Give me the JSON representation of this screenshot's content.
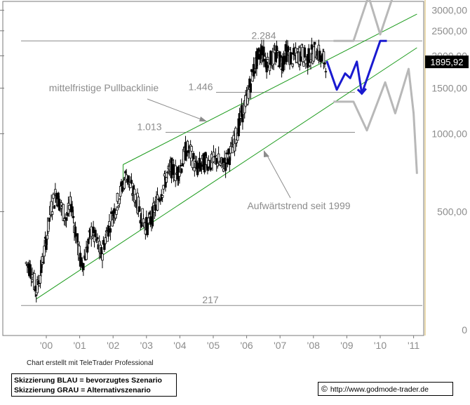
{
  "chart_data": {
    "type": "candlestick",
    "y_scale": "log",
    "x_axis": {
      "tick_labels": [
        "'00",
        "'01",
        "'02",
        "'03",
        "'04",
        "'05",
        "'06",
        "'07",
        "'08",
        "'09",
        "'10",
        "'11"
      ]
    },
    "y_axis": {
      "tick_labels": [
        "3000,00",
        "2500,00",
        "2000,00",
        "1500,00",
        "1000,00",
        "500,00",
        "0"
      ],
      "tick_values": [
        3000,
        2500,
        2000,
        1500,
        1000,
        500
      ],
      "position": "right"
    },
    "current_price": {
      "label": "1895,92",
      "value": 1895.92
    },
    "horizontal_levels": [
      {
        "label": "2.284",
        "value": 2284
      },
      {
        "label": "1.446",
        "value": 1446
      },
      {
        "label": "1.013",
        "value": 1013
      },
      {
        "label": "217",
        "value": 217
      }
    ],
    "annotations": [
      {
        "text": "mittelfristige Pullbacklinie"
      },
      {
        "text": "Aufwärtstrend seit 1999"
      }
    ],
    "trendlines": [
      {
        "name": "mittelfristige Pullbacklinie",
        "from": {
          "year": 2002.3,
          "value": 760
        },
        "to": {
          "year": 2011.1,
          "value": 2900
        }
      },
      {
        "name": "Aufwärtstrend seit 1999",
        "from": {
          "year": 1999.7,
          "value": 230
        },
        "to": {
          "year": 2011.1,
          "value": 2150
        }
      }
    ],
    "scenario_blue": [
      {
        "year": 2008.4,
        "value": 1910
      },
      {
        "year": 2008.7,
        "value": 1480
      },
      {
        "year": 2008.95,
        "value": 1710
      },
      {
        "year": 2009.1,
        "value": 1640
      },
      {
        "year": 2009.3,
        "value": 1900
      },
      {
        "year": 2009.45,
        "value": 1430
      },
      {
        "year": 2010.0,
        "value": 2284
      },
      {
        "year": 2010.2,
        "value": 2284
      }
    ],
    "scenario_grey_up": [
      {
        "year": 2008.6,
        "value": 2284
      },
      {
        "year": 2009.2,
        "value": 2284
      },
      {
        "year": 2009.65,
        "value": 3400
      },
      {
        "year": 2010.0,
        "value": 2420
      },
      {
        "year": 2010.45,
        "value": 3600
      }
    ],
    "scenario_grey_down": [
      {
        "year": 2008.6,
        "value": 1330
      },
      {
        "year": 2009.2,
        "value": 1330
      },
      {
        "year": 2009.6,
        "value": 1030
      },
      {
        "year": 2010.15,
        "value": 1580
      },
      {
        "year": 2010.45,
        "value": 1200
      },
      {
        "year": 2010.85,
        "value": 1780
      },
      {
        "year": 2011.0,
        "value": 1200
      },
      {
        "year": 2011.1,
        "value": 700
      }
    ],
    "price_series": [
      [
        1999.4,
        315
      ],
      [
        1999.55,
        300
      ],
      [
        1999.7,
        245
      ],
      [
        1999.85,
        300
      ],
      [
        2000.0,
        390
      ],
      [
        2000.15,
        520
      ],
      [
        2000.3,
        590
      ],
      [
        2000.45,
        520
      ],
      [
        2000.6,
        470
      ],
      [
        2000.75,
        540
      ],
      [
        2000.9,
        400
      ],
      [
        2001.05,
        310
      ],
      [
        2001.2,
        350
      ],
      [
        2001.35,
        420
      ],
      [
        2001.5,
        385
      ],
      [
        2001.65,
        340
      ],
      [
        2001.8,
        410
      ],
      [
        2001.95,
        470
      ],
      [
        2002.1,
        530
      ],
      [
        2002.25,
        610
      ],
      [
        2002.4,
        700
      ],
      [
        2002.55,
        610
      ],
      [
        2002.7,
        560
      ],
      [
        2002.85,
        480
      ],
      [
        2003.0,
        440
      ],
      [
        2003.15,
        470
      ],
      [
        2003.3,
        540
      ],
      [
        2003.45,
        600
      ],
      [
        2003.6,
        680
      ],
      [
        2003.75,
        740
      ],
      [
        2003.9,
        700
      ],
      [
        2004.05,
        760
      ],
      [
        2004.2,
        880
      ],
      [
        2004.35,
        830
      ],
      [
        2004.5,
        730
      ],
      [
        2004.65,
        760
      ],
      [
        2004.8,
        790
      ],
      [
        2004.95,
        770
      ],
      [
        2005.1,
        800
      ],
      [
        2005.25,
        750
      ],
      [
        2005.4,
        790
      ],
      [
        2005.55,
        860
      ],
      [
        2005.7,
        1000
      ],
      [
        2005.85,
        1180
      ],
      [
        2006.0,
        1350
      ],
      [
        2006.15,
        1650
      ],
      [
        2006.3,
        1920
      ],
      [
        2006.45,
        2100
      ],
      [
        2006.6,
        1900
      ],
      [
        2006.75,
        1930
      ],
      [
        2006.9,
        2020
      ],
      [
        2007.05,
        1890
      ],
      [
        2007.2,
        2080
      ],
      [
        2007.35,
        1950
      ],
      [
        2007.5,
        2000
      ],
      [
        2007.65,
        2050
      ],
      [
        2007.8,
        1930
      ],
      [
        2007.95,
        2030
      ],
      [
        2008.1,
        2120
      ],
      [
        2008.25,
        1930
      ],
      [
        2008.4,
        1896
      ]
    ]
  }
}
